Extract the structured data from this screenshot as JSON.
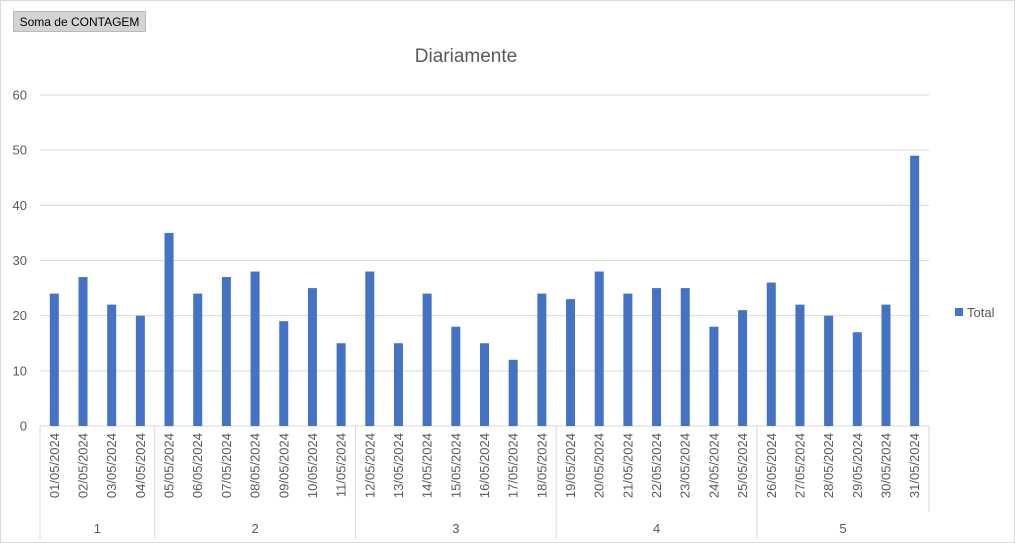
{
  "pivot_field_button": "Soma de CONTAGEM",
  "chart_data": {
    "type": "bar",
    "title": "Diariamente",
    "xlabel": "",
    "ylabel": "",
    "ylim": [
      0,
      60
    ],
    "yticks": [
      0,
      10,
      20,
      30,
      40,
      50,
      60
    ],
    "grid": true,
    "legend": "right",
    "color": "#4472c4",
    "categories": [
      "01/05/2024",
      "02/05/2024",
      "03/05/2024",
      "04/05/2024",
      "05/05/2024",
      "06/05/2024",
      "07/05/2024",
      "08/05/2024",
      "09/05/2024",
      "10/05/2024",
      "11/05/2024",
      "12/05/2024",
      "13/05/2024",
      "14/05/2024",
      "15/05/2024",
      "16/05/2024",
      "17/05/2024",
      "18/05/2024",
      "19/05/2024",
      "20/05/2024",
      "21/05/2024",
      "22/05/2024",
      "23/05/2024",
      "24/05/2024",
      "25/05/2024",
      "26/05/2024",
      "27/05/2024",
      "28/05/2024",
      "29/05/2024",
      "30/05/2024",
      "31/05/2024"
    ],
    "groups": [
      {
        "label": "1",
        "count": 4
      },
      {
        "label": "2",
        "count": 7
      },
      {
        "label": "3",
        "count": 7
      },
      {
        "label": "4",
        "count": 7
      },
      {
        "label": "5",
        "count": 6
      }
    ],
    "series": [
      {
        "name": "Total",
        "values": [
          24,
          27,
          22,
          20,
          35,
          24,
          27,
          28,
          19,
          25,
          15,
          28,
          15,
          24,
          18,
          15,
          12,
          24,
          23,
          28,
          24,
          25,
          25,
          18,
          21,
          26,
          22,
          20,
          17,
          22,
          49
        ]
      }
    ]
  }
}
